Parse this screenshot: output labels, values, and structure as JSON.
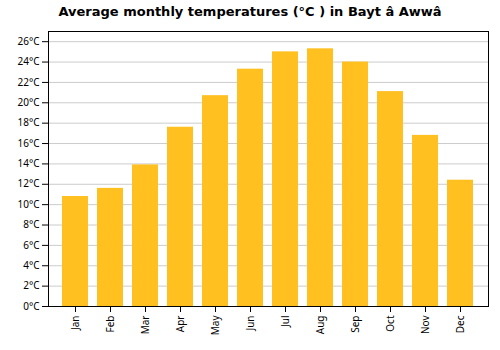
{
  "chart_data": {
    "type": "bar",
    "title": "Average monthly temperatures (°C ) in Bayt â  Awwâ",
    "categories": [
      "Jan",
      "Feb",
      "Mar",
      "Apr",
      "May",
      "Jun",
      "Jul",
      "Aug",
      "Sep",
      "Oct",
      "Nov",
      "Dec"
    ],
    "values": [
      10.8,
      11.6,
      13.9,
      17.6,
      20.7,
      23.3,
      25.0,
      25.3,
      24.0,
      21.1,
      16.8,
      12.4
    ],
    "color": "#FFC020",
    "ylim": [
      0,
      27
    ],
    "yticks": [
      {
        "value": 0,
        "label": "0°C"
      },
      {
        "value": 2,
        "label": "2°C"
      },
      {
        "value": 4,
        "label": "4°C"
      },
      {
        "value": 6,
        "label": "6°C"
      },
      {
        "value": 8,
        "label": "8°C"
      },
      {
        "value": 10,
        "label": "10°C"
      },
      {
        "value": 12,
        "label": "12°C"
      },
      {
        "value": 14,
        "label": "14°C"
      },
      {
        "value": 16,
        "label": "16°C"
      },
      {
        "value": 18,
        "label": "18°C"
      },
      {
        "value": 20,
        "label": "20°C"
      },
      {
        "value": 22,
        "label": "22°C"
      },
      {
        "value": 24,
        "label": "24°C"
      },
      {
        "value": 26,
        "label": "26°C"
      }
    ],
    "grid": true
  }
}
